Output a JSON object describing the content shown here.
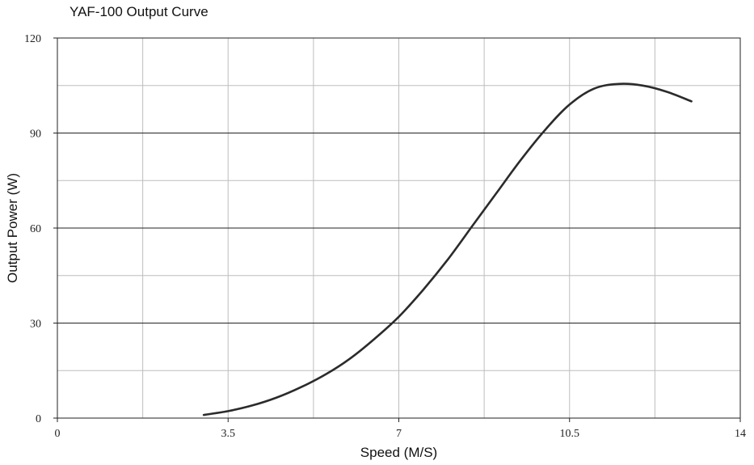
{
  "chart_data": {
    "type": "line",
    "title": "YAF-100 Output Curve",
    "xlabel": "Speed (M/S)",
    "ylabel": "Output Power (W)",
    "xlim": [
      0,
      14
    ],
    "ylim": [
      0,
      120
    ],
    "x_ticks": [
      0,
      3.5,
      7,
      10.5,
      14
    ],
    "x_tick_labels": [
      "0",
      "3.5",
      "7",
      "10.5",
      "14"
    ],
    "y_ticks": [
      0,
      30,
      60,
      90,
      120
    ],
    "y_tick_labels": [
      "0",
      "30",
      "60",
      "90",
      "120"
    ],
    "grid": true,
    "legend": "none",
    "line_color": "#2b2b2b",
    "series": [
      {
        "x": [
          3.0,
          3.5,
          4.0,
          4.5,
          5.0,
          5.5,
          6.0,
          6.5,
          7.0,
          7.5,
          8.0,
          8.5,
          9.0,
          9.5,
          10.0,
          10.5,
          11.0,
          11.5,
          12.0,
          12.5,
          13.0
        ],
        "values": [
          1.0,
          2.2,
          4.0,
          6.5,
          9.8,
          13.8,
          18.8,
          25.0,
          32.0,
          40.5,
          50.0,
          60.5,
          71.0,
          81.5,
          91.0,
          99.0,
          104.0,
          105.5,
          105.0,
          103.0,
          100.0
        ]
      }
    ]
  }
}
